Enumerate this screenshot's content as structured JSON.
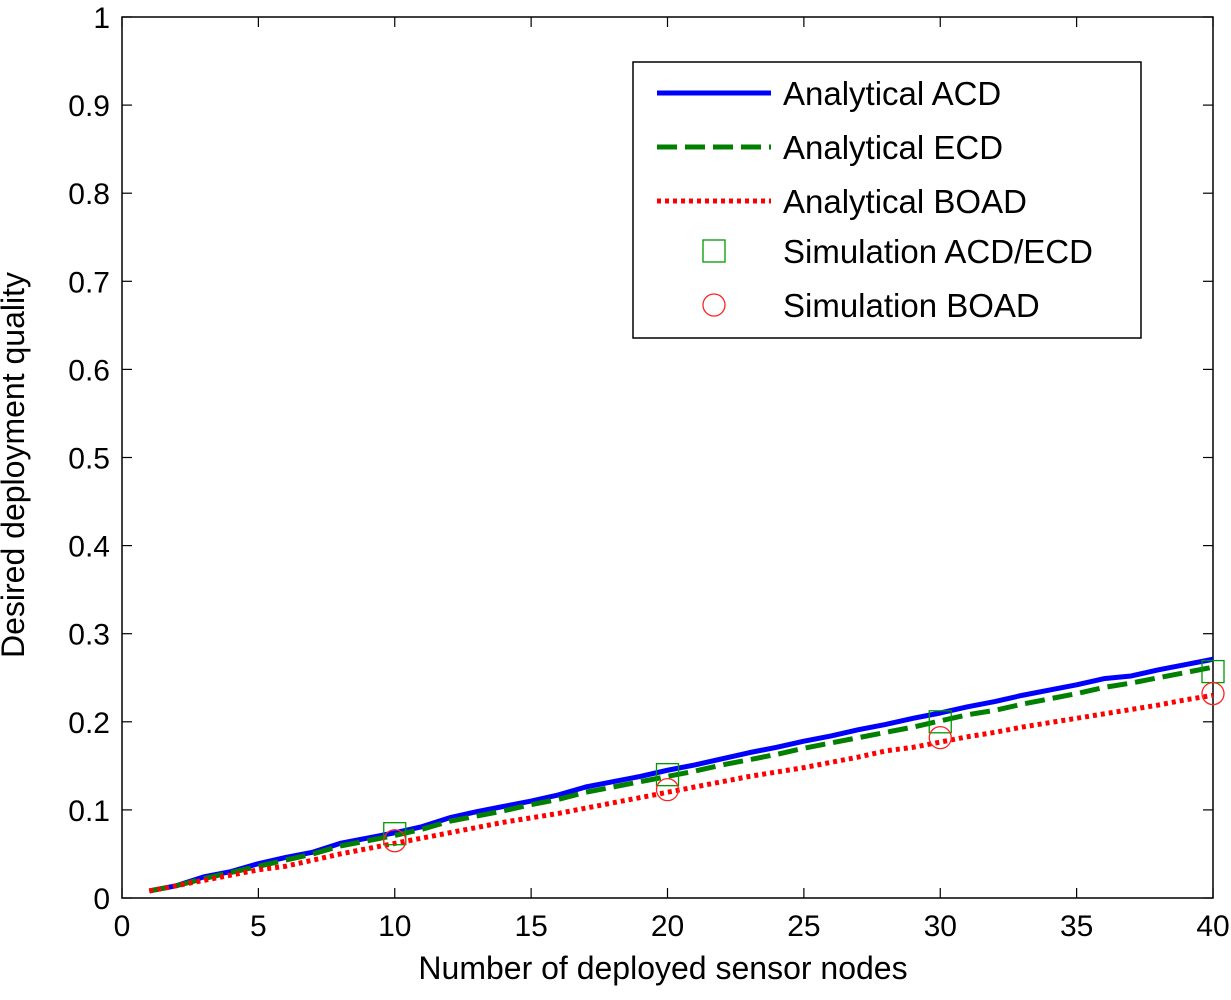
{
  "chart_data": {
    "type": "line",
    "title": "",
    "xlabel": "Number of deployed sensor nodes",
    "ylabel": "Desired deployment quality",
    "xlim": [
      0,
      40
    ],
    "ylim": [
      0,
      1
    ],
    "xticks": [
      0,
      5,
      10,
      15,
      20,
      25,
      30,
      35,
      40
    ],
    "yticks": [
      0,
      0.1,
      0.2,
      0.3,
      0.4,
      0.5,
      0.6,
      0.7,
      0.8,
      0.9,
      1
    ],
    "grid": false,
    "legend_position": "top-right",
    "series": [
      {
        "name": "Analytical ACD",
        "style": "solid",
        "color": "#0000ff",
        "x": [
          1,
          2,
          3,
          4,
          5,
          6,
          7,
          8,
          9,
          10,
          11,
          12,
          13,
          14,
          15,
          16,
          17,
          18,
          19,
          20,
          21,
          22,
          23,
          24,
          25,
          26,
          27,
          28,
          29,
          30,
          31,
          32,
          33,
          34,
          35,
          36,
          37,
          38,
          39,
          40
        ],
        "y": [
          0.008,
          0.014,
          0.024,
          0.03,
          0.039,
          0.046,
          0.052,
          0.062,
          0.068,
          0.074,
          0.081,
          0.091,
          0.098,
          0.104,
          0.11,
          0.117,
          0.126,
          0.132,
          0.138,
          0.145,
          0.151,
          0.158,
          0.165,
          0.171,
          0.178,
          0.184,
          0.191,
          0.197,
          0.204,
          0.21,
          0.217,
          0.223,
          0.23,
          0.236,
          0.242,
          0.249,
          0.252,
          0.259,
          0.265,
          0.271
        ]
      },
      {
        "name": "Analytical ECD",
        "style": "dashed",
        "color": "#007f00",
        "x": [
          1,
          2,
          3,
          4,
          5,
          6,
          7,
          8,
          9,
          10,
          11,
          12,
          13,
          14,
          15,
          16,
          17,
          18,
          19,
          20,
          21,
          22,
          23,
          24,
          25,
          26,
          27,
          28,
          29,
          30,
          31,
          32,
          33,
          34,
          35,
          36,
          37,
          38,
          39,
          40
        ],
        "y": [
          0.008,
          0.014,
          0.022,
          0.029,
          0.036,
          0.043,
          0.05,
          0.059,
          0.065,
          0.071,
          0.078,
          0.087,
          0.093,
          0.099,
          0.106,
          0.112,
          0.12,
          0.126,
          0.132,
          0.138,
          0.144,
          0.151,
          0.157,
          0.163,
          0.17,
          0.176,
          0.182,
          0.188,
          0.194,
          0.201,
          0.208,
          0.213,
          0.22,
          0.226,
          0.232,
          0.239,
          0.244,
          0.25,
          0.256,
          0.262
        ]
      },
      {
        "name": "Analytical BOAD",
        "style": "dotted",
        "color": "#ff0000",
        "x": [
          1,
          2,
          3,
          4,
          5,
          6,
          7,
          8,
          9,
          10,
          11,
          12,
          13,
          14,
          15,
          16,
          17,
          18,
          19,
          20,
          21,
          22,
          23,
          24,
          25,
          26,
          27,
          28,
          29,
          30,
          31,
          32,
          33,
          34,
          35,
          36,
          37,
          38,
          39,
          40
        ],
        "y": [
          0.008,
          0.014,
          0.02,
          0.026,
          0.032,
          0.036,
          0.043,
          0.05,
          0.056,
          0.062,
          0.068,
          0.074,
          0.08,
          0.086,
          0.091,
          0.096,
          0.102,
          0.108,
          0.114,
          0.12,
          0.126,
          0.132,
          0.138,
          0.143,
          0.148,
          0.154,
          0.16,
          0.167,
          0.171,
          0.177,
          0.183,
          0.188,
          0.194,
          0.199,
          0.204,
          0.209,
          0.214,
          0.219,
          0.225,
          0.23
        ]
      },
      {
        "name": "Simulation ACD/ECD",
        "style": "marker-square",
        "color": "#009900",
        "x": [
          10,
          20,
          30,
          40
        ],
        "y": [
          0.073,
          0.14,
          0.2,
          0.257
        ]
      },
      {
        "name": "Simulation BOAD",
        "style": "marker-circle",
        "color": "#ff2222",
        "x": [
          10,
          20,
          30,
          40
        ],
        "y": [
          0.065,
          0.123,
          0.182,
          0.232
        ]
      }
    ]
  }
}
